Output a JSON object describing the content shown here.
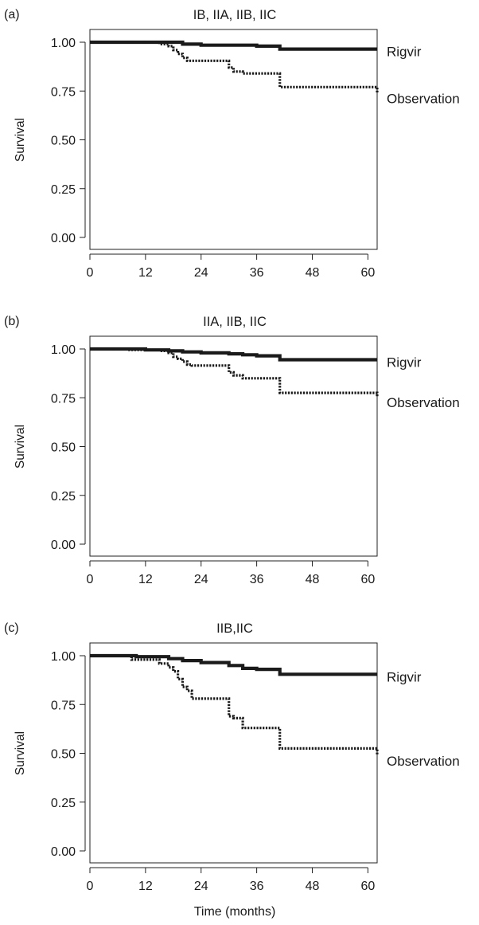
{
  "chart_data": [
    {
      "type": "line",
      "panel_label": "(a)",
      "title": "IB, IIA, IIB, IIC",
      "xlabel": "",
      "ylabel": "Survival",
      "xlim": [
        0,
        62
      ],
      "ylim": [
        0,
        1
      ],
      "xticks": [
        0,
        12,
        24,
        36,
        48,
        60
      ],
      "yticks": [
        "1.00",
        "0.75",
        "0.50",
        "0.25",
        "0.00"
      ],
      "grid": false,
      "series": [
        {
          "name": "Rigvir",
          "style": "solid",
          "x": [
            0,
            20,
            24,
            36,
            41,
            62
          ],
          "y": [
            1.0,
            0.99,
            0.985,
            0.98,
            0.965,
            0.965
          ]
        },
        {
          "name": "Observation",
          "style": "dotted",
          "x": [
            0,
            15,
            17,
            18,
            19,
            20,
            21,
            30,
            31,
            33,
            41,
            62
          ],
          "y": [
            1.0,
            0.99,
            0.98,
            0.96,
            0.94,
            0.92,
            0.905,
            0.87,
            0.85,
            0.84,
            0.77,
            0.74
          ]
        }
      ]
    },
    {
      "type": "line",
      "panel_label": "(b)",
      "title": "IIA, IIB, IIC",
      "xlabel": "",
      "ylabel": "Survival",
      "xlim": [
        0,
        62
      ],
      "ylim": [
        0,
        1
      ],
      "xticks": [
        0,
        12,
        24,
        36,
        48,
        60
      ],
      "yticks": [
        "1.00",
        "0.75",
        "0.50",
        "0.25",
        "0.00"
      ],
      "grid": false,
      "series": [
        {
          "name": "Rigvir",
          "style": "solid",
          "x": [
            0,
            12,
            17,
            20,
            24,
            30,
            33,
            36,
            41,
            62
          ],
          "y": [
            1.0,
            0.995,
            0.99,
            0.985,
            0.98,
            0.975,
            0.97,
            0.965,
            0.945,
            0.945
          ]
        },
        {
          "name": "Observation",
          "style": "dotted",
          "x": [
            0,
            8,
            15,
            17,
            18,
            19,
            20,
            21,
            22,
            30,
            31,
            33,
            41,
            62
          ],
          "y": [
            1.0,
            0.995,
            0.99,
            0.98,
            0.96,
            0.95,
            0.935,
            0.92,
            0.915,
            0.88,
            0.865,
            0.85,
            0.775,
            0.755
          ]
        }
      ]
    },
    {
      "type": "line",
      "panel_label": "(c)",
      "title": "IIB,IIC",
      "xlabel": "Time (months)",
      "ylabel": "Survival",
      "xlim": [
        0,
        62
      ],
      "ylim": [
        0,
        1
      ],
      "xticks": [
        0,
        12,
        24,
        36,
        48,
        60
      ],
      "yticks": [
        "1.00",
        "0.75",
        "0.50",
        "0.25",
        "0.00"
      ],
      "grid": false,
      "series": [
        {
          "name": "Rigvir",
          "style": "solid",
          "x": [
            0,
            10,
            17,
            20,
            24,
            30,
            33,
            36,
            41,
            62
          ],
          "y": [
            1.0,
            0.995,
            0.985,
            0.975,
            0.965,
            0.95,
            0.935,
            0.93,
            0.905,
            0.905
          ]
        },
        {
          "name": "Observation",
          "style": "dotted",
          "x": [
            0,
            9,
            15,
            17,
            18,
            19,
            20,
            21,
            22,
            30,
            31,
            33,
            41,
            62
          ],
          "y": [
            1.0,
            0.98,
            0.96,
            0.94,
            0.92,
            0.88,
            0.84,
            0.82,
            0.78,
            0.69,
            0.68,
            0.63,
            0.525,
            0.49
          ]
        }
      ]
    }
  ]
}
